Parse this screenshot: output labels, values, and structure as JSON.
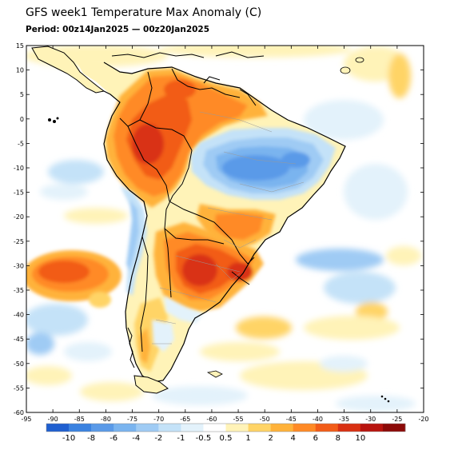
{
  "title": "GFS week1 Temperature Max Anomaly (C)",
  "period": "Period: 00z14Jan2025 — 00z20Jan2025",
  "map": {
    "region": "South America",
    "lon_range": [
      -95,
      -20
    ],
    "lat_range": [
      -60,
      15
    ],
    "lon_ticks": [
      "-95",
      "-90",
      "-85",
      "-80",
      "-75",
      "-70",
      "-65",
      "-60",
      "-55",
      "-50",
      "-45",
      "-40",
      "-35",
      "-30",
      "-25",
      "-20"
    ],
    "lat_ticks": [
      "15",
      "10",
      "5",
      "0",
      "-5",
      "-10",
      "-15",
      "-20",
      "-25",
      "-30",
      "-35",
      "-40",
      "-45",
      "-50",
      "-55",
      "-60"
    ]
  },
  "colorbar": {
    "colors": [
      "#1f5fd0",
      "#3a82e0",
      "#5a9ae8",
      "#7ab4ef",
      "#9fcbf4",
      "#c4e2f8",
      "#e3f2fb",
      "#ffffff",
      "#fff3b8",
      "#ffd466",
      "#ffb23a",
      "#ff8a26",
      "#f25c18",
      "#d93012",
      "#b8140e",
      "#8c0a08"
    ],
    "labels": [
      "-10",
      "-8",
      "-6",
      "-4",
      "-2",
      "-1",
      "-0.5",
      "0.5",
      "1",
      "2",
      "4",
      "6",
      "8",
      "10"
    ]
  },
  "anomaly_regions": [
    {
      "name": "north-andes-amazon-warm",
      "value": 6,
      "color": "#ff8a26"
    },
    {
      "name": "central-andes-warm-core",
      "value": 8,
      "color": "#f25c18"
    },
    {
      "name": "southeast-brazil-warm",
      "value": 4,
      "color": "#ff8a26"
    },
    {
      "name": "argentina-uruguay-warm-core",
      "value": 10,
      "color": "#d93012"
    },
    {
      "name": "northeast-brazil-cool",
      "value": -4,
      "color": "#5a9ae8"
    },
    {
      "name": "southeast-pacific-warm",
      "value": 6,
      "color": "#f25c18"
    },
    {
      "name": "south-atlantic-cool-patches",
      "value": -1,
      "color": "#c4e2f8"
    },
    {
      "name": "patagonia-cool",
      "value": -1,
      "color": "#c4e2f8"
    }
  ]
}
